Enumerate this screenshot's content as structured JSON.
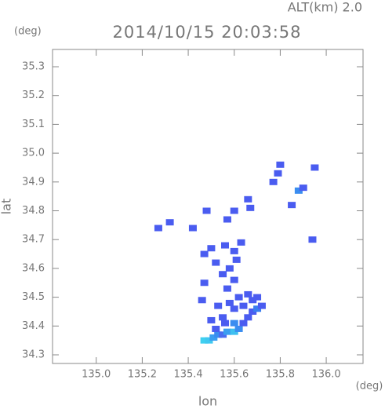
{
  "chart_data": {
    "type": "scatter",
    "title": "2014/10/15 20:03:58",
    "altitude_label": "ALT(km)  2.0",
    "y_unit": "(deg)",
    "x_unit": "(deg)",
    "xlabel": "lon",
    "ylabel": "lat",
    "xlim": [
      134.81,
      136.16
    ],
    "ylim": [
      34.27,
      35.36
    ],
    "xticks": [
      {
        "value": 135,
        "label": "135.0"
      },
      135.2,
      135.4,
      135.6,
      135.8,
      {
        "value": 136,
        "label": "136.0"
      }
    ],
    "yticks": [
      34.3,
      34.4,
      34.5,
      34.6,
      34.7,
      34.8,
      34.9,
      {
        "value": 35,
        "label": "35.0"
      },
      35.1,
      35.2,
      35.3
    ],
    "x": [
      135.47,
      135.49,
      135.51,
      135.53,
      135.55,
      135.57,
      135.6,
      135.62,
      135.52,
      135.56,
      135.6,
      135.64,
      135.5,
      135.55,
      135.66,
      135.68,
      135.7,
      135.72,
      135.68,
      135.64,
      135.6,
      135.58,
      135.62,
      135.66,
      135.7,
      135.57,
      135.6,
      135.58,
      135.61,
      135.6,
      135.63,
      135.56,
      135.5,
      135.47,
      135.52,
      135.55,
      135.47,
      135.46,
      135.53,
      135.27,
      135.32,
      135.42,
      135.57,
      135.6,
      135.67,
      135.77,
      135.79,
      135.8,
      135.85,
      135.88,
      135.9,
      135.95,
      135.94,
      135.66,
      135.48
    ],
    "y": [
      34.35,
      34.35,
      34.36,
      34.37,
      34.37,
      34.38,
      34.38,
      34.39,
      34.39,
      34.41,
      34.41,
      34.41,
      34.42,
      34.43,
      34.43,
      34.45,
      34.46,
      34.47,
      34.49,
      34.47,
      34.46,
      34.48,
      34.5,
      34.51,
      34.5,
      34.53,
      34.56,
      34.6,
      34.63,
      34.66,
      34.69,
      34.68,
      34.67,
      34.65,
      34.62,
      34.58,
      34.55,
      34.49,
      34.47,
      34.74,
      34.76,
      34.74,
      34.77,
      34.8,
      34.81,
      34.9,
      34.93,
      34.96,
      34.82,
      34.87,
      34.88,
      34.95,
      34.7,
      34.84,
      34.8
    ],
    "colors": [
      "#3fd0f0",
      "#3fc8f0",
      "#3a9ef0",
      "#3a8df0",
      "#4a6cf0",
      "#3a9ef0",
      "#3fc0f0",
      "#3a8df0",
      "#4a5cf0",
      "#4a5cf0",
      "#3a8df0",
      "#4a5cf0",
      "#4a5cf0",
      "#4a5cf0",
      "#4a5cf0",
      "#4a5cf0",
      "#3a7ef0",
      "#4a5cf0",
      "#4a5cf0",
      "#4a5cf0",
      "#4a5cf0",
      "#4a5cf0",
      "#4a5cf0",
      "#4a5cf0",
      "#4a5cf0",
      "#4a5cf0",
      "#4a5cf0",
      "#4a5cf0",
      "#4a5cf0",
      "#4a5cf0",
      "#4a5cf0",
      "#4a5cf0",
      "#4a5cf0",
      "#4a5cf0",
      "#4a5cf0",
      "#4a5cf0",
      "#4a5cf0",
      "#4a5cf0",
      "#4a5cf0",
      "#4a5cf0",
      "#4a5cf0",
      "#4a5cf0",
      "#4a5cf0",
      "#4a5cf0",
      "#4a5cf0",
      "#4a5cf0",
      "#4a5cf0",
      "#4a5cf0",
      "#4a5cf0",
      "#3a8df0",
      "#4a5cf0",
      "#4a5cf0",
      "#4a5cf0",
      "#4a5cf0",
      "#4a5cf0"
    ]
  }
}
